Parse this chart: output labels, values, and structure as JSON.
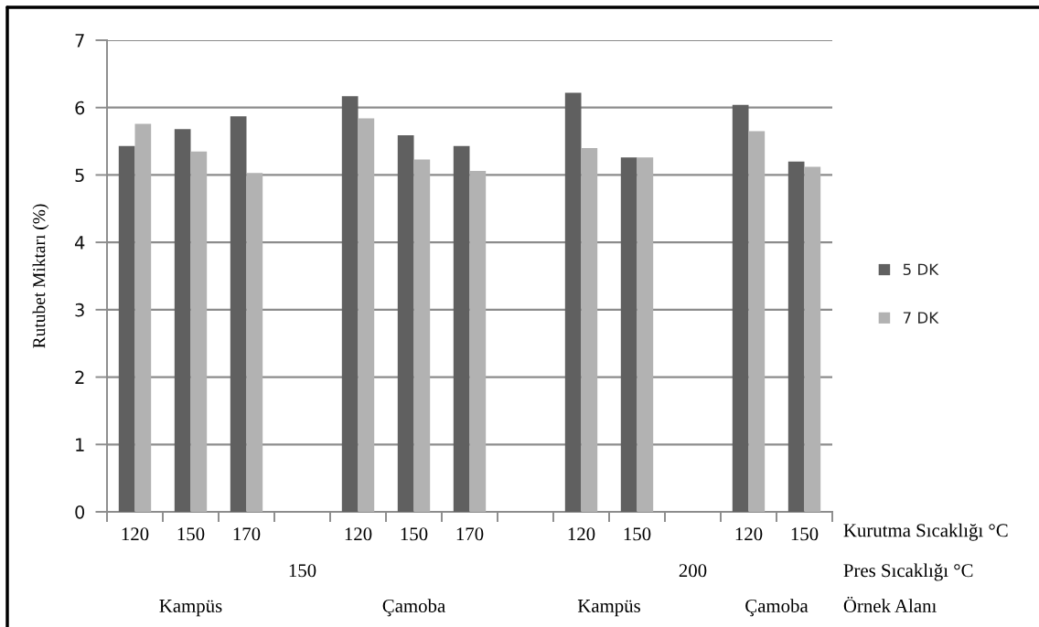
{
  "chart_data": {
    "type": "bar",
    "ylabel": "Rutubet Miktarı (%)",
    "categories": [
      "120",
      "150",
      "170",
      null,
      "120",
      "150",
      "170",
      null,
      "120",
      "150",
      null,
      "120",
      "150"
    ],
    "series": [
      {
        "name": "5 DK",
        "color": "#606060",
        "values": [
          5.43,
          5.68,
          5.87,
          null,
          6.17,
          5.59,
          5.43,
          null,
          6.22,
          5.26,
          null,
          6.04,
          5.2
        ]
      },
      {
        "name": "7 DK",
        "color": "#b2b2b2",
        "values": [
          5.76,
          5.35,
          5.03,
          null,
          5.84,
          5.23,
          5.06,
          null,
          5.4,
          5.26,
          null,
          5.65,
          5.12
        ]
      }
    ],
    "ylim": [
      0,
      7
    ],
    "yticks": [
      0,
      1,
      2,
      3,
      4,
      5,
      6,
      7
    ],
    "grid": "y",
    "legend": "right",
    "annotations": [
      "150",
      "200",
      "Kampüs",
      "Çamoba",
      "Kampüs",
      "Çamoba",
      "Kurutma Sıcaklığı °C",
      "Pres Sıcaklığı °C",
      "Örnek Alanı"
    ]
  }
}
